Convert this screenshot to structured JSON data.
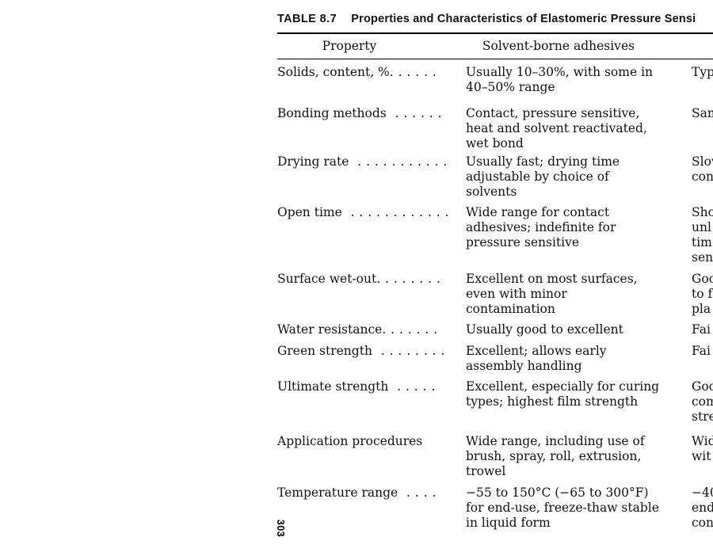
{
  "page": {
    "title_label": "TABLE 8.7",
    "title_text": "Properties and Characteristics of Elastomeric Pressure Sensi",
    "page_number": "303"
  },
  "table": {
    "headers": {
      "col1": "Property",
      "col2": "Solvent-borne adhesives"
    },
    "rows": [
      {
        "property": "Solids, content, %",
        "leader": "......",
        "solvent_lines": [
          "Usually 10–30%, with some in",
          "40–50% range"
        ],
        "cutoff_lines": [
          "Typ"
        ]
      },
      {
        "property": "Bonding methods",
        "leader": " ......",
        "solvent_lines": [
          "Contact, pressure sensitive,",
          "heat and solvent reactivated,",
          "wet bond"
        ],
        "cutoff_lines": [
          "Sam"
        ]
      },
      {
        "property": "Drying rate",
        "leader": " ...........",
        "solvent_lines": [
          "Usually fast; drying time",
          "adjustable by choice of",
          "solvents"
        ],
        "cutoff_lines": [
          "Slow",
          "con"
        ]
      },
      {
        "property": "Open time",
        "leader": " ............",
        "solvent_lines": [
          "Wide range for contact",
          "adhesives; indefinite for",
          "pressure sensitive"
        ],
        "cutoff_lines": [
          "Sho",
          "unl",
          "tim",
          "sen"
        ]
      },
      {
        "property": "Surface wet-out",
        "leader": "........",
        "solvent_lines": [
          "Excellent on most surfaces,",
          "even with minor",
          "contamination"
        ],
        "cutoff_lines": [
          "Goo",
          "to f",
          "pla"
        ]
      },
      {
        "property": "Water resistance",
        "leader": ".......",
        "solvent_lines": [
          "Usually good to excellent"
        ],
        "cutoff_lines": [
          "Fai"
        ]
      },
      {
        "property": "Green strength",
        "leader": " ........",
        "solvent_lines": [
          "Excellent; allows early",
          "assembly handling"
        ],
        "cutoff_lines": [
          "Fai"
        ]
      },
      {
        "property": "Ultimate strength",
        "leader": " .....",
        "solvent_lines": [
          "Excellent, especially for curing",
          "types; highest film strength"
        ],
        "cutoff_lines": [
          "Goo",
          "com",
          "stre"
        ]
      },
      {
        "property": "Application procedures",
        "leader": "",
        "solvent_lines": [
          "Wide range, including use of",
          "brush, spray, roll, extrusion,",
          "trowel"
        ],
        "cutoff_lines": [
          "Wid",
          "wit"
        ]
      },
      {
        "property": "Temperature range",
        "leader": " ....",
        "solvent_lines": [
          "−55 to 150°C (−65 to 300°F)",
          "for end-use, freeze-thaw stable",
          "in liquid form"
        ],
        "cutoff_lines": [
          "−40",
          "end",
          "con"
        ]
      }
    ]
  }
}
